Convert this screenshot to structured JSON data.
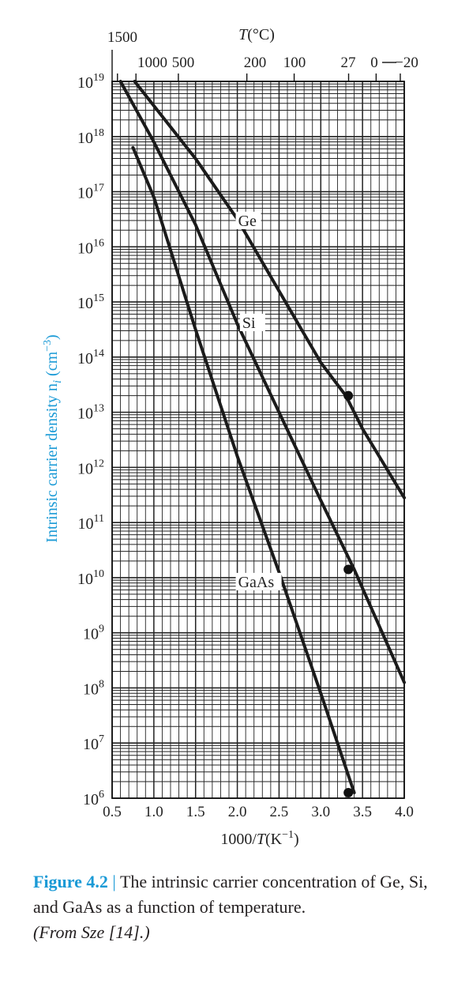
{
  "chart_data": {
    "type": "line",
    "x_axis": {
      "label_prefix": "1000/",
      "label_var": "T",
      "label_unit": "(K",
      "label_exp": "−1",
      "label_close": ")",
      "range": [
        0.5,
        4.0
      ],
      "ticks": [
        0.5,
        1.0,
        1.5,
        2.0,
        2.5,
        3.0,
        3.5,
        4.0
      ],
      "tick_labels": [
        "0.5",
        "1.0",
        "1.5",
        "2.0",
        "2.5",
        "3.0",
        "3.5",
        "4.0"
      ],
      "minor_step": 0.1
    },
    "top_axis": {
      "label_var": "T",
      "label_unit": "(°C)",
      "ticks_celsius": [
        1500,
        1000,
        500,
        200,
        100,
        27,
        0,
        -20
      ],
      "tick_labels": [
        "1500",
        "1000",
        "500",
        "200",
        "100",
        "27",
        "0",
        "−20"
      ]
    },
    "y_axis": {
      "label": "Intrinsic carrier density n",
      "label_sub": "i",
      "label_unit": " (cm",
      "label_exp": "−3",
      "label_close": ")",
      "scale": "log",
      "range": [
        1000000.0,
        1e+19
      ],
      "decades": [
        6,
        7,
        8,
        9,
        10,
        11,
        12,
        13,
        14,
        15,
        16,
        17,
        18,
        19
      ],
      "tick_base": "10"
    },
    "grid": true,
    "series": [
      {
        "name": "Ge",
        "x": [
          0.77,
          1.5,
          2.0,
          2.5,
          3.0,
          3.3,
          3.5,
          4.0
        ],
        "log10_y": [
          19.0,
          17.6,
          16.5,
          15.2,
          13.9,
          13.3,
          12.7,
          11.45
        ]
      },
      {
        "name": "Si",
        "x": [
          0.6,
          1.0,
          1.5,
          2.0,
          2.5,
          3.0,
          3.4,
          4.0
        ],
        "log10_y": [
          19.0,
          17.9,
          16.4,
          14.6,
          13.0,
          11.4,
          10.15,
          8.1
        ]
      },
      {
        "name": "GaAs",
        "x": [
          0.75,
          1.0,
          1.5,
          2.0,
          2.5,
          3.0,
          3.4
        ],
        "log10_y": [
          17.8,
          16.9,
          14.5,
          12.2,
          10.1,
          7.9,
          6.1
        ]
      }
    ],
    "markers": [
      {
        "series": "Ge",
        "x": 3.33,
        "log10_y": 13.3
      },
      {
        "series": "Si",
        "x": 3.33,
        "log10_y": 10.15
      },
      {
        "series": "GaAs",
        "x": 3.33,
        "log10_y": 6.1
      }
    ],
    "series_labels": [
      {
        "text": "Ge",
        "x": 2.0,
        "log10_y": 16.45
      },
      {
        "text": "Si",
        "x": 2.05,
        "log10_y": 14.6
      },
      {
        "text": "GaAs",
        "x": 2.0,
        "log10_y": 9.9
      }
    ]
  },
  "caption": {
    "figure": "Figure 4.2",
    "separator": " | ",
    "text": "The intrinsic carrier concentration of Ge, Si, and GaAs as a function of temperature.",
    "source": "(From Sze [14].)"
  }
}
